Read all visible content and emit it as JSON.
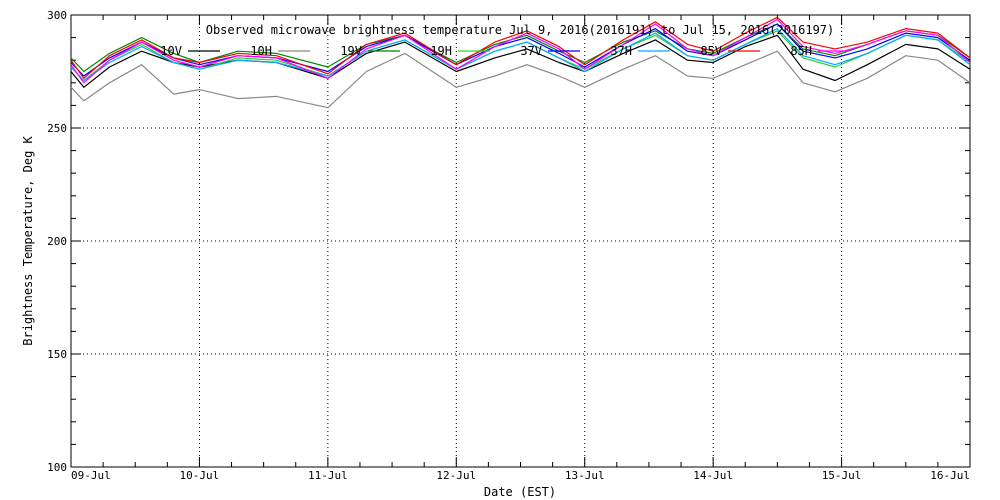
{
  "chart_data": {
    "type": "line",
    "title": "Observed microwave brightness temperature Jul 9, 2016(2016191) to Jul 15, 2016(2016197)",
    "xlabel": "Date (EST)",
    "ylabel": "Brightness Temperature, Deg K",
    "ylim": [
      100,
      300
    ],
    "xlim": [
      0,
      7
    ],
    "y_ticks": [
      100,
      150,
      200,
      250,
      300
    ],
    "x_ticks": [
      {
        "x": 0,
        "label": "09-Jul"
      },
      {
        "x": 1,
        "label": "10-Jul"
      },
      {
        "x": 2,
        "label": "11-Jul"
      },
      {
        "x": 3,
        "label": "12-Jul"
      },
      {
        "x": 4,
        "label": "13-Jul"
      },
      {
        "x": 5,
        "label": "14-Jul"
      },
      {
        "x": 6,
        "label": "15-Jul"
      },
      {
        "x": 7,
        "label": "16-Jul"
      }
    ],
    "grid": true,
    "legend_position": "top",
    "series": [
      {
        "name": "10V",
        "color": "#000000",
        "x": [
          0,
          0.1,
          0.3,
          0.55,
          0.8,
          1.0,
          1.3,
          1.6,
          2.0,
          2.3,
          2.6,
          3.0,
          3.3,
          3.55,
          3.8,
          4.0,
          4.3,
          4.55,
          4.8,
          5.0,
          5.25,
          5.5,
          5.7,
          5.95,
          6.2,
          6.5,
          6.75,
          7.0
        ],
        "y": [
          275,
          268,
          277,
          284,
          279,
          277,
          280,
          279,
          272,
          283,
          288,
          275,
          281,
          285,
          279,
          275,
          283,
          289,
          280,
          279,
          286,
          291,
          276,
          271,
          278,
          287,
          285,
          276
        ]
      },
      {
        "name": "10H",
        "color": "#888888",
        "x": [
          0,
          0.1,
          0.3,
          0.55,
          0.8,
          1.0,
          1.3,
          1.6,
          2.0,
          2.3,
          2.6,
          3.0,
          3.3,
          3.55,
          3.8,
          4.0,
          4.3,
          4.55,
          4.8,
          5.0,
          5.25,
          5.5,
          5.7,
          5.95,
          6.2,
          6.5,
          6.75,
          7.0
        ],
        "y": [
          268,
          262,
          270,
          278,
          265,
          267,
          263,
          264,
          259,
          275,
          283,
          268,
          273,
          278,
          273,
          268,
          276,
          282,
          273,
          272,
          278,
          284,
          270,
          266,
          272,
          282,
          280,
          270
        ]
      },
      {
        "name": "19V",
        "color": "#008800",
        "x": [
          0,
          0.1,
          0.3,
          0.55,
          0.8,
          1.0,
          1.3,
          1.6,
          2.0,
          2.3,
          2.6,
          3.0,
          3.3,
          3.55,
          3.8,
          4.0,
          4.3,
          4.55,
          4.8,
          5.0,
          5.25,
          5.5,
          5.7,
          5.95,
          6.2,
          6.5,
          6.75,
          7.0
        ],
        "y": [
          281,
          275,
          283,
          290,
          283,
          279,
          284,
          283,
          277,
          287,
          291,
          279,
          287,
          291,
          284,
          279,
          288,
          293,
          285,
          283,
          290,
          296,
          285,
          282,
          287,
          293,
          291,
          281
        ]
      },
      {
        "name": "19H",
        "color": "#33cc33",
        "x": [
          0,
          0.1,
          0.3,
          0.55,
          0.8,
          1.0,
          1.3,
          1.6,
          2.0,
          2.3,
          2.6,
          3.0,
          3.3,
          3.55,
          3.8,
          4.0,
          4.3,
          4.55,
          4.8,
          5.0,
          5.25,
          5.5,
          5.7,
          5.95,
          6.2,
          6.5,
          6.75,
          7.0
        ],
        "y": [
          277,
          271,
          280,
          287,
          279,
          276,
          281,
          280,
          273,
          284,
          289,
          276,
          284,
          288,
          281,
          276,
          285,
          291,
          282,
          280,
          287,
          293,
          281,
          277,
          283,
          291,
          289,
          279
        ]
      },
      {
        "name": "37V",
        "color": "#0000ff",
        "x": [
          0,
          0.1,
          0.3,
          0.55,
          0.8,
          1.0,
          1.3,
          1.6,
          2.0,
          2.3,
          2.6,
          3.0,
          3.3,
          3.55,
          3.8,
          4.0,
          4.3,
          4.55,
          4.8,
          5.0,
          5.25,
          5.5,
          5.7,
          5.95,
          6.2,
          6.5,
          6.75,
          7.0
        ],
        "y": [
          279,
          273,
          281,
          288,
          281,
          278,
          282,
          281,
          275,
          286,
          291,
          278,
          286,
          290,
          283,
          277,
          287,
          294,
          284,
          282,
          289,
          296,
          284,
          281,
          285,
          292,
          290,
          280
        ]
      },
      {
        "name": "37H",
        "color": "#00aaff",
        "x": [
          0,
          0.1,
          0.3,
          0.55,
          0.8,
          1.0,
          1.3,
          1.6,
          2.0,
          2.3,
          2.6,
          3.0,
          3.3,
          3.55,
          3.8,
          4.0,
          4.3,
          4.55,
          4.8,
          5.0,
          5.25,
          5.5,
          5.7,
          5.95,
          6.2,
          6.5,
          6.75,
          7.0
        ],
        "y": [
          277,
          271,
          279,
          286,
          279,
          276,
          280,
          279,
          273,
          284,
          289,
          276,
          284,
          288,
          281,
          275,
          285,
          292,
          282,
          280,
          287,
          294,
          282,
          278,
          283,
          291,
          289,
          278
        ]
      },
      {
        "name": "85V",
        "color": "#ff0000",
        "x": [
          0,
          0.1,
          0.3,
          0.55,
          0.8,
          1.0,
          1.3,
          1.6,
          2.0,
          2.3,
          2.6,
          3.0,
          3.3,
          3.55,
          3.8,
          4.0,
          4.3,
          4.55,
          4.8,
          5.0,
          5.25,
          5.5,
          5.7,
          5.95,
          6.2,
          6.5,
          6.75,
          7.0
        ],
        "y": [
          280,
          272,
          282,
          289,
          281,
          279,
          283,
          282,
          274,
          287,
          292,
          278,
          288,
          293,
          286,
          278,
          289,
          297,
          287,
          284,
          292,
          299,
          288,
          285,
          288,
          294,
          292,
          281
        ]
      },
      {
        "name": "85H",
        "color": "#ff00ff",
        "x": [
          0,
          0.1,
          0.3,
          0.55,
          0.8,
          1.0,
          1.3,
          1.6,
          2.0,
          2.3,
          2.6,
          3.0,
          3.3,
          3.55,
          3.8,
          4.0,
          4.3,
          4.55,
          4.8,
          5.0,
          5.25,
          5.5,
          5.7,
          5.95,
          6.2,
          6.5,
          6.75,
          7.0
        ],
        "y": [
          278,
          270,
          280,
          288,
          280,
          277,
          282,
          281,
          272,
          285,
          291,
          276,
          286,
          292,
          285,
          276,
          287,
          296,
          285,
          282,
          290,
          298,
          286,
          283,
          287,
          293,
          291,
          279
        ]
      }
    ]
  }
}
